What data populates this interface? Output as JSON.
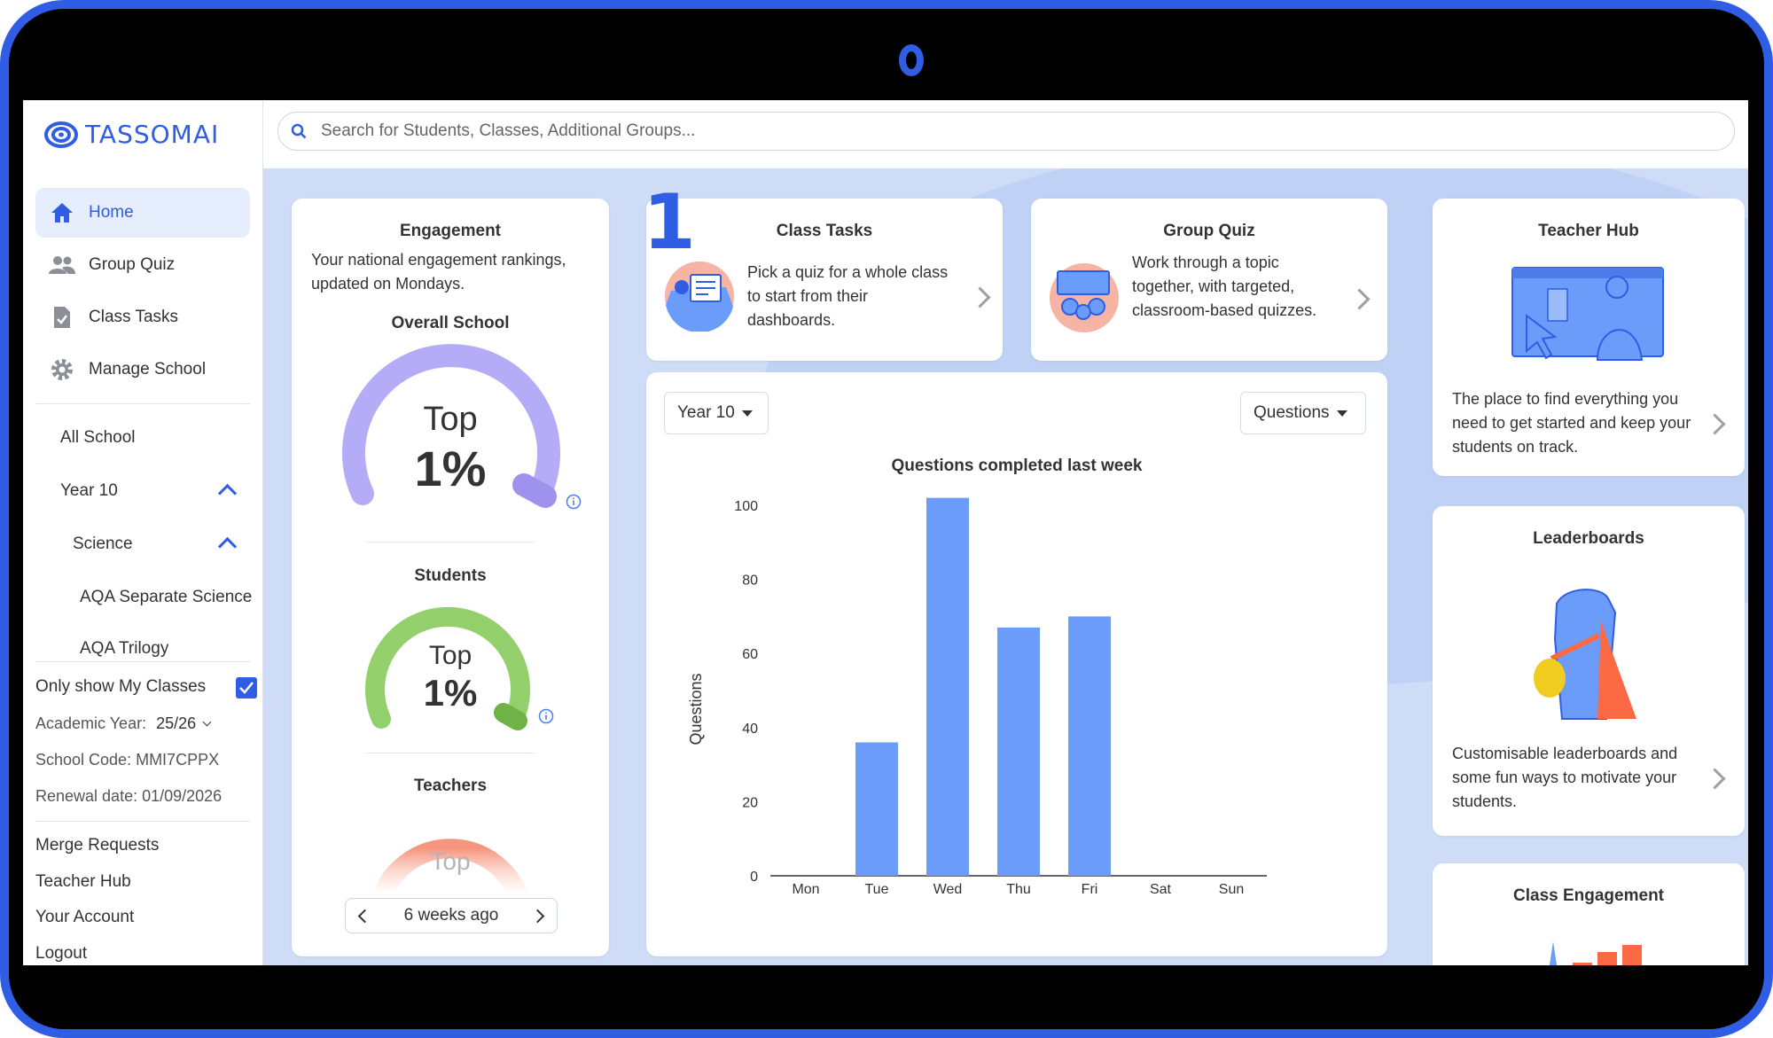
{
  "brand": {
    "name": "TASSOMAI",
    "accent": "#2f5de4"
  },
  "sidebar": {
    "nav": [
      {
        "label": "Home",
        "icon": "home-icon",
        "active": true
      },
      {
        "label": "Group Quiz",
        "icon": "people-icon",
        "active": false
      },
      {
        "label": "Class Tasks",
        "icon": "clipboard-check-icon",
        "active": false
      },
      {
        "label": "Manage School",
        "icon": "gear-icon",
        "active": false
      }
    ],
    "tree": {
      "all_school": "All School",
      "year": "Year 10",
      "subject": "Science",
      "classes": [
        "AQA Separate Science",
        "AQA Trilogy"
      ]
    },
    "only_show_my_classes": {
      "label": "Only show My Classes",
      "checked": true
    },
    "academic_year": {
      "label": "Academic Year:",
      "value": "25/26"
    },
    "school_code": "School Code: MMI7CPPX",
    "renewal_date": "Renewal date: 01/09/2026",
    "links": [
      "Merge Requests",
      "Teacher Hub",
      "Your Account",
      "Logout"
    ]
  },
  "search": {
    "placeholder": "Search for Students, Classes, Additional Groups..."
  },
  "engagement": {
    "title": "Engagement",
    "description": "Your national engagement rankings, updated on Mondays.",
    "overall": {
      "label": "Overall School",
      "rank_top": "Top",
      "rank_value": "1%"
    },
    "students": {
      "label": "Students",
      "rank_top": "Top",
      "rank_value": "1%"
    },
    "teachers": {
      "label": "Teachers",
      "rank_top": "Top"
    },
    "week_label": "6 weeks ago"
  },
  "class_tasks": {
    "title": "Class Tasks",
    "text": "Pick a quiz for a whole class to start from their dashboards.",
    "step_number": "1"
  },
  "group_quiz": {
    "title": "Group Quiz",
    "text": "Work through a topic together, with targeted, classroom-based quizzes."
  },
  "chart_panel": {
    "year_select": "Year 10",
    "metric_select": "Questions"
  },
  "teacher_hub": {
    "title": "Teacher Hub",
    "text": "The place to find everything you need to get started and keep your students on track."
  },
  "leaderboards": {
    "title": "Leaderboards",
    "text": "Customisable leaderboards and some fun ways to motivate your students."
  },
  "class_engagement": {
    "title": "Class Engagement"
  },
  "chart_data": {
    "type": "bar",
    "title": "Questions completed last week",
    "xlabel": "",
    "ylabel": "Questions",
    "categories": [
      "Mon",
      "Tue",
      "Wed",
      "Thu",
      "Fri",
      "Sat",
      "Sun"
    ],
    "values": [
      0,
      36,
      102,
      67,
      70,
      0,
      0
    ],
    "ylim": [
      0,
      100
    ],
    "yticks": [
      0,
      20,
      40,
      60,
      80,
      100
    ],
    "bar_color": "#6b9cfa",
    "grid": false
  }
}
